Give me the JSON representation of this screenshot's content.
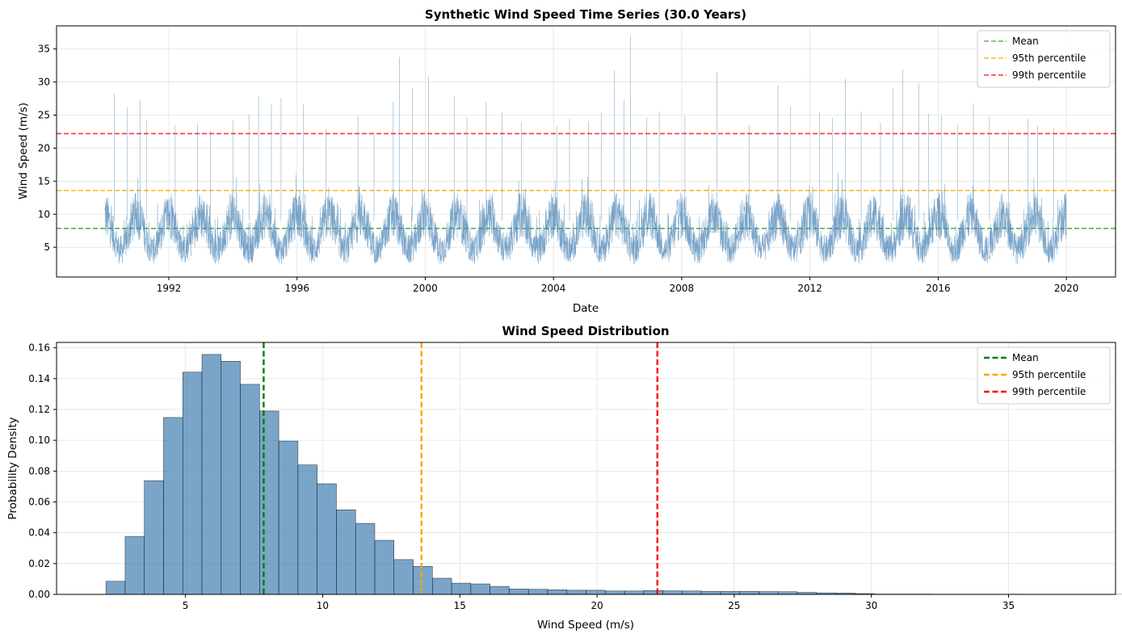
{
  "chart_data": [
    {
      "type": "line",
      "title": "Synthetic Wind Speed Time Series (30.0 Years)",
      "xlabel": "Date",
      "ylabel": "Wind Speed (m/s)",
      "x_range": [
        "1990-01-01",
        "2019-12-31"
      ],
      "xlim": [
        "1988-07-01",
        "2021-07-15"
      ],
      "ylim": [
        0.5,
        38.5
      ],
      "x_ticks": [
        "1992",
        "1996",
        "2000",
        "2004",
        "2008",
        "2012",
        "2016",
        "2020"
      ],
      "y_ticks": [
        "5",
        "10",
        "15",
        "20",
        "25",
        "30",
        "35"
      ],
      "grid": true,
      "legend_placement": "top-right",
      "series": [
        {
          "name": "",
          "color": "#4682b4",
          "description_values": {
            "seasonal_low_min": 2.3,
            "seasonal_high_max": 15,
            "overall_max": 37.0
          }
        },
        {
          "name": "Mean",
          "color": "#2ca02c",
          "style": "dashed",
          "value": 7.85
        },
        {
          "name": "95th percentile",
          "color": "#ffa500",
          "style": "dashed",
          "value": 13.6
        },
        {
          "name": "99th percentile",
          "color": "#ff0000",
          "style": "dashed",
          "value": 22.2
        }
      ],
      "peaks": [
        {
          "x": 1990.3,
          "y": 28.2
        },
        {
          "x": 1990.7,
          "y": 26.2
        },
        {
          "x": 1991.1,
          "y": 27.2
        },
        {
          "x": 1991.3,
          "y": 24.3
        },
        {
          "x": 1992.2,
          "y": 23.5
        },
        {
          "x": 1992.9,
          "y": 23.7
        },
        {
          "x": 1993.3,
          "y": 22.7
        },
        {
          "x": 1994.0,
          "y": 24.2
        },
        {
          "x": 1994.5,
          "y": 25.1
        },
        {
          "x": 1994.8,
          "y": 27.9
        },
        {
          "x": 1995.2,
          "y": 26.6
        },
        {
          "x": 1995.5,
          "y": 27.6
        },
        {
          "x": 1996.2,
          "y": 26.7
        },
        {
          "x": 1996.9,
          "y": 22.8
        },
        {
          "x": 1997.9,
          "y": 24.8
        },
        {
          "x": 1998.4,
          "y": 22.0
        },
        {
          "x": 1999.0,
          "y": 27.0
        },
        {
          "x": 1999.2,
          "y": 33.8
        },
        {
          "x": 1999.6,
          "y": 29.1
        },
        {
          "x": 2000.1,
          "y": 30.9
        },
        {
          "x": 2000.9,
          "y": 27.8
        },
        {
          "x": 2001.3,
          "y": 24.6
        },
        {
          "x": 2001.9,
          "y": 27.0
        },
        {
          "x": 2002.4,
          "y": 25.4
        },
        {
          "x": 2003.0,
          "y": 23.9
        },
        {
          "x": 2004.1,
          "y": 23.3
        },
        {
          "x": 2004.5,
          "y": 24.5
        },
        {
          "x": 2005.1,
          "y": 24.1
        },
        {
          "x": 2005.5,
          "y": 25.4
        },
        {
          "x": 2005.9,
          "y": 31.8
        },
        {
          "x": 2006.2,
          "y": 27.2
        },
        {
          "x": 2006.4,
          "y": 37.0
        },
        {
          "x": 2006.9,
          "y": 24.6
        },
        {
          "x": 2007.3,
          "y": 25.5
        },
        {
          "x": 2008.1,
          "y": 24.8
        },
        {
          "x": 2009.1,
          "y": 31.5
        },
        {
          "x": 2010.1,
          "y": 23.5
        },
        {
          "x": 2011.0,
          "y": 29.5
        },
        {
          "x": 2011.4,
          "y": 26.3
        },
        {
          "x": 2012.3,
          "y": 25.4
        },
        {
          "x": 2012.7,
          "y": 24.6
        },
        {
          "x": 2013.1,
          "y": 30.5
        },
        {
          "x": 2013.6,
          "y": 25.5
        },
        {
          "x": 2014.2,
          "y": 23.8
        },
        {
          "x": 2014.6,
          "y": 29.1
        },
        {
          "x": 2014.9,
          "y": 31.9
        },
        {
          "x": 2015.4,
          "y": 29.8
        },
        {
          "x": 2015.7,
          "y": 25.2
        },
        {
          "x": 2016.1,
          "y": 24.9
        },
        {
          "x": 2016.6,
          "y": 23.6
        },
        {
          "x": 2017.1,
          "y": 26.8
        },
        {
          "x": 2017.6,
          "y": 24.8
        },
        {
          "x": 2018.2,
          "y": 22.7
        },
        {
          "x": 2018.8,
          "y": 24.5
        },
        {
          "x": 2019.1,
          "y": 23.4
        },
        {
          "x": 2019.6,
          "y": 23.0
        }
      ]
    },
    {
      "type": "bar",
      "title": "Wind Speed Distribution",
      "xlabel": "Wind Speed (m/s)",
      "ylabel": "Probability Density",
      "xlim": [
        0.3,
        38.9
      ],
      "ylim": [
        0,
        0.1635
      ],
      "x_ticks": [
        "5",
        "10",
        "15",
        "20",
        "25",
        "30",
        "35"
      ],
      "y_ticks": [
        "0.00",
        "0.02",
        "0.04",
        "0.06",
        "0.08",
        "0.10",
        "0.12",
        "0.14",
        "0.16"
      ],
      "grid": true,
      "legend_placement": "top-right",
      "bar_color": "#4682b4",
      "bin_start": 2.1,
      "bin_width": 0.7,
      "values": [
        0.0085,
        0.0375,
        0.0738,
        0.1148,
        0.1442,
        0.1557,
        0.1513,
        0.1363,
        0.119,
        0.0995,
        0.084,
        0.0718,
        0.0549,
        0.0461,
        0.0351,
        0.0226,
        0.0182,
        0.0105,
        0.0073,
        0.0068,
        0.0052,
        0.0035,
        0.0033,
        0.003,
        0.0027,
        0.0027,
        0.0022,
        0.0022,
        0.0025,
        0.0023,
        0.0022,
        0.002,
        0.002,
        0.002,
        0.0018,
        0.0017,
        0.0013,
        0.001,
        0.0009,
        0.0005,
        0.0003,
        0.0003,
        0.0003,
        0.0002,
        0.0002,
        0.0002,
        0.0002,
        0.0002,
        0.0001,
        0.0001,
        0.0001,
        0.0001,
        0.0001,
        0.0001,
        0.0001,
        0.0001,
        0.0,
        0.0,
        0.0,
        0.0,
        0.0,
        0.0,
        0.0,
        0.0,
        0.0001,
        0.0,
        0.0,
        0.0,
        0.0,
        0.0
      ],
      "vlines": [
        {
          "name": "Mean",
          "color": "#008000",
          "x": 7.85
        },
        {
          "name": "95th percentile",
          "color": "#ffa500",
          "x": 13.6
        },
        {
          "name": "99th percentile",
          "color": "#ff0000",
          "x": 22.2
        }
      ]
    }
  ]
}
